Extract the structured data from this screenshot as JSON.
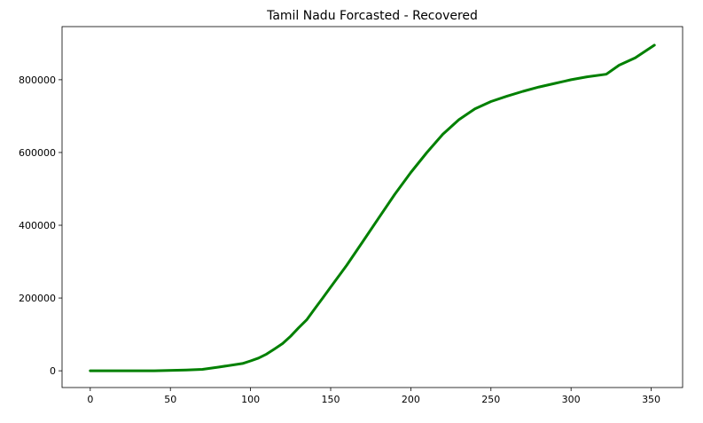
{
  "chart_data": {
    "type": "line",
    "title": "Tamil Nadu Forcasted - Recovered",
    "xlabel": "",
    "ylabel": "",
    "xlim": [
      -17.6,
      369.6
    ],
    "ylim": [
      -46000,
      946000
    ],
    "xticks": [
      0,
      50,
      100,
      150,
      200,
      250,
      300,
      350
    ],
    "yticks": [
      0,
      200000,
      400000,
      600000,
      800000
    ],
    "xtick_labels": [
      "0",
      "50",
      "100",
      "150",
      "200",
      "250",
      "300",
      "350"
    ],
    "ytick_labels": [
      "0",
      "200000",
      "400000",
      "600000",
      "800000"
    ],
    "grid": false,
    "color": "#008000",
    "series": [
      {
        "x": [
          0,
          20,
          40,
          60,
          70,
          80,
          95,
          100,
          105,
          110,
          115,
          120,
          125,
          130,
          135,
          140,
          145,
          150,
          155,
          160,
          170,
          180,
          190,
          200,
          210,
          220,
          230,
          240,
          250,
          260,
          270,
          280,
          290,
          300,
          310,
          322,
          330,
          340,
          352
        ],
        "y": [
          0,
          0,
          0,
          2000,
          4000,
          10000,
          20000,
          27000,
          35000,
          46000,
          60000,
          75000,
          95000,
          118000,
          140000,
          170000,
          200000,
          230000,
          260000,
          290000,
          355000,
          420000,
          485000,
          545000,
          600000,
          650000,
          690000,
          720000,
          740000,
          755000,
          768000,
          780000,
          790000,
          800000,
          808000,
          815000,
          840000,
          860000,
          895000
        ]
      }
    ]
  }
}
